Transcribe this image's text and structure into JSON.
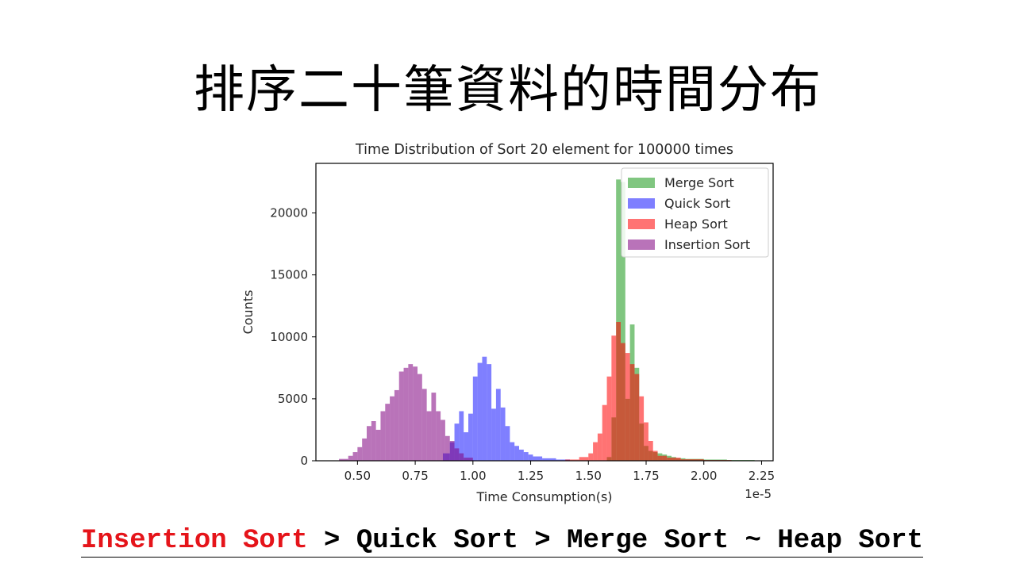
{
  "slide": {
    "title": "排序二十筆資料的時間分布",
    "conclusion": {
      "highlight": "Insertion Sort",
      "rest": " > Quick Sort > Merge Sort ~ Heap Sort",
      "highlight_color": "#e5141a"
    }
  },
  "chart_data": {
    "type": "histogram",
    "title": "Time Distribution of Sort 20 element for 100000 times",
    "xlabel": "Time Consumption(s)",
    "ylabel": "Counts",
    "x_offset_label": "1e-5",
    "xlim": [
      0.32,
      2.3
    ],
    "ylim": [
      0,
      24000
    ],
    "xticks": [
      0.5,
      0.75,
      1.0,
      1.25,
      1.5,
      1.75,
      2.0,
      2.25
    ],
    "xtick_labels": [
      "0.50",
      "0.75",
      "1.00",
      "1.25",
      "1.50",
      "1.75",
      "2.00",
      "2.25"
    ],
    "yticks": [
      0,
      5000,
      10000,
      15000,
      20000
    ],
    "ytick_labels": [
      "0",
      "5000",
      "10000",
      "15000",
      "20000"
    ],
    "legend_position": "top-right",
    "series": [
      {
        "name": "Merge Sort",
        "color": "#2ca02c",
        "alpha": 0.6,
        "bars": [
          [
            1.58,
            1.6,
            300
          ],
          [
            1.6,
            1.62,
            3500
          ],
          [
            1.62,
            1.64,
            22700
          ],
          [
            1.64,
            1.66,
            22500
          ],
          [
            1.66,
            1.68,
            5000
          ],
          [
            1.68,
            1.7,
            11000
          ],
          [
            1.7,
            1.72,
            7500
          ],
          [
            1.72,
            1.74,
            3000
          ],
          [
            1.74,
            1.76,
            1200
          ],
          [
            1.76,
            1.78,
            800
          ],
          [
            1.78,
            1.8,
            700
          ],
          [
            1.8,
            1.82,
            600
          ],
          [
            1.82,
            1.84,
            500
          ],
          [
            1.84,
            1.86,
            400
          ],
          [
            1.86,
            1.88,
            300
          ],
          [
            1.88,
            1.92,
            200
          ],
          [
            1.92,
            2.0,
            150
          ],
          [
            2.0,
            2.1,
            100
          ],
          [
            2.1,
            2.22,
            60
          ]
        ]
      },
      {
        "name": "Quick Sort",
        "color": "#0000ff",
        "alpha": 0.5,
        "bars": [
          [
            0.87,
            0.9,
            600
          ],
          [
            0.9,
            0.92,
            1500
          ],
          [
            0.92,
            0.94,
            3000
          ],
          [
            0.94,
            0.96,
            4000
          ],
          [
            0.96,
            0.98,
            2300
          ],
          [
            0.98,
            1.0,
            3800
          ],
          [
            1.0,
            1.02,
            6800
          ],
          [
            1.02,
            1.04,
            7900
          ],
          [
            1.04,
            1.06,
            8400
          ],
          [
            1.06,
            1.08,
            7800
          ],
          [
            1.08,
            1.1,
            4200
          ],
          [
            1.1,
            1.12,
            5800
          ],
          [
            1.12,
            1.14,
            4300
          ],
          [
            1.14,
            1.16,
            2800
          ],
          [
            1.16,
            1.18,
            1500
          ],
          [
            1.18,
            1.2,
            1200
          ],
          [
            1.2,
            1.22,
            900
          ],
          [
            1.22,
            1.24,
            700
          ],
          [
            1.24,
            1.26,
            500
          ],
          [
            1.26,
            1.3,
            350
          ],
          [
            1.3,
            1.36,
            200
          ],
          [
            1.36,
            1.42,
            100
          ]
        ]
      },
      {
        "name": "Heap Sort",
        "color": "#ff0000",
        "alpha": 0.55,
        "bars": [
          [
            1.4,
            1.46,
            100
          ],
          [
            1.46,
            1.5,
            300
          ],
          [
            1.5,
            1.52,
            600
          ],
          [
            1.52,
            1.54,
            1500
          ],
          [
            1.54,
            1.56,
            2200
          ],
          [
            1.56,
            1.58,
            4500
          ],
          [
            1.58,
            1.6,
            6800
          ],
          [
            1.6,
            1.62,
            10100
          ],
          [
            1.62,
            1.64,
            11200
          ],
          [
            1.64,
            1.66,
            9500
          ],
          [
            1.66,
            1.68,
            8700
          ],
          [
            1.68,
            1.7,
            7800
          ],
          [
            1.7,
            1.72,
            7000
          ],
          [
            1.72,
            1.74,
            5200
          ],
          [
            1.74,
            1.76,
            3100
          ],
          [
            1.76,
            1.78,
            1600
          ],
          [
            1.78,
            1.8,
            800
          ],
          [
            1.8,
            1.84,
            400
          ],
          [
            1.84,
            1.9,
            250
          ],
          [
            1.9,
            2.0,
            120
          ],
          [
            2.0,
            2.12,
            60
          ]
        ]
      },
      {
        "name": "Insertion Sort",
        "color": "#800080",
        "alpha": 0.55,
        "bars": [
          [
            0.42,
            0.46,
            150
          ],
          [
            0.46,
            0.48,
            400
          ],
          [
            0.48,
            0.5,
            700
          ],
          [
            0.5,
            0.52,
            1100
          ],
          [
            0.52,
            0.54,
            1800
          ],
          [
            0.54,
            0.56,
            2800
          ],
          [
            0.56,
            0.58,
            3200
          ],
          [
            0.58,
            0.6,
            2500
          ],
          [
            0.6,
            0.62,
            4000
          ],
          [
            0.62,
            0.64,
            4600
          ],
          [
            0.64,
            0.66,
            5200
          ],
          [
            0.66,
            0.68,
            5700
          ],
          [
            0.68,
            0.7,
            7200
          ],
          [
            0.7,
            0.72,
            7500
          ],
          [
            0.72,
            0.74,
            7800
          ],
          [
            0.74,
            0.76,
            7600
          ],
          [
            0.76,
            0.78,
            7000
          ],
          [
            0.78,
            0.8,
            5800
          ],
          [
            0.8,
            0.82,
            4000
          ],
          [
            0.82,
            0.84,
            5500
          ],
          [
            0.84,
            0.86,
            4000
          ],
          [
            0.86,
            0.88,
            3300
          ],
          [
            0.88,
            0.9,
            2000
          ],
          [
            0.9,
            0.92,
            1600
          ],
          [
            0.92,
            0.94,
            1000
          ],
          [
            0.94,
            0.96,
            600
          ],
          [
            0.96,
            1.0,
            250
          ]
        ]
      }
    ]
  }
}
